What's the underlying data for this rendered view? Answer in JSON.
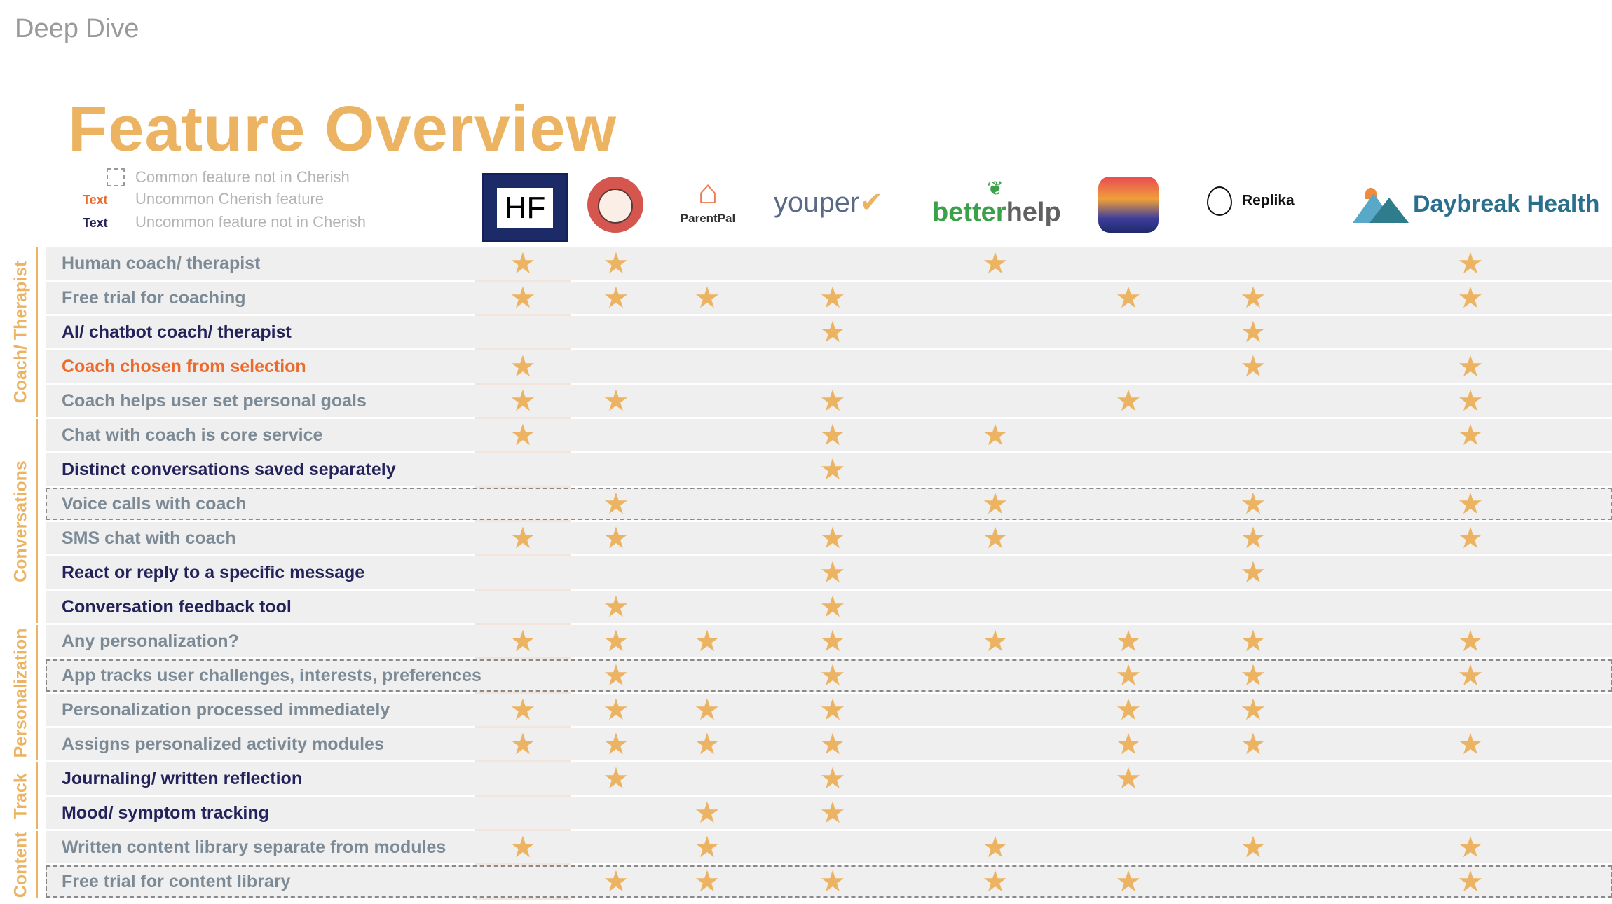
{
  "deck_title": "Deep Dive",
  "title": "Feature Overview",
  "legend": [
    {
      "swatch": "",
      "text": "Common feature not in Cherish",
      "kind": "dashed"
    },
    {
      "swatch": "Text",
      "text": "Uncommon Cherish feature",
      "kind": "orange",
      "color": "#ec6a2c"
    },
    {
      "swatch": "Text",
      "text": "Uncommon feature not in Cherish",
      "kind": "navy",
      "color": "#24225a"
    }
  ],
  "logos": {
    "hf": "HF",
    "face": "",
    "parentpal": "ParentPal",
    "youper": "youper",
    "betterhelp_a": "better",
    "betterhelp_b": "help",
    "app": "",
    "replika": "Replika",
    "daybreak": "Daybreak Health"
  },
  "categories": [
    {
      "name": "Coach/ Therapist",
      "start": 0,
      "end": 4
    },
    {
      "name": "Conversations",
      "start": 5,
      "end": 10
    },
    {
      "name": "Personalization",
      "start": 11,
      "end": 14
    },
    {
      "name": "Track",
      "start": 15,
      "end": 16
    },
    {
      "name": "Content",
      "start": 17,
      "end": 18
    }
  ],
  "columns": [
    "HF",
    "Face",
    "ParentPal",
    "youper",
    "betterhelp",
    "App",
    "Replika",
    "Daybreak Health"
  ],
  "star_glyph": "★",
  "rows": [
    {
      "label": "Human coach/ therapist",
      "style": "gray",
      "dashed": false,
      "stars": [
        0,
        1,
        4,
        7
      ]
    },
    {
      "label": "Free trial for coaching",
      "style": "gray",
      "dashed": false,
      "stars": [
        0,
        1,
        2,
        3,
        5,
        6,
        7
      ]
    },
    {
      "label": "AI/ chatbot coach/ therapist",
      "style": "navy",
      "dashed": false,
      "stars": [
        3,
        6
      ]
    },
    {
      "label": "Coach chosen from selection",
      "style": "orange",
      "dashed": false,
      "stars": [
        0,
        6,
        7
      ]
    },
    {
      "label": "Coach helps user set personal goals",
      "style": "gray",
      "dashed": false,
      "stars": [
        0,
        1,
        3,
        5,
        7
      ]
    },
    {
      "label": "Chat with coach is core service",
      "style": "gray",
      "dashed": false,
      "stars": [
        0,
        3,
        4,
        7
      ]
    },
    {
      "label": "Distinct conversations saved separately",
      "style": "navy",
      "dashed": false,
      "stars": [
        3
      ]
    },
    {
      "label": "Voice calls with coach",
      "style": "gray",
      "dashed": true,
      "stars": [
        1,
        4,
        6,
        7
      ]
    },
    {
      "label": "SMS chat with coach",
      "style": "gray",
      "dashed": false,
      "stars": [
        0,
        1,
        3,
        4,
        6,
        7
      ]
    },
    {
      "label": "React or reply to a specific message",
      "style": "navy",
      "dashed": false,
      "stars": [
        3,
        6
      ]
    },
    {
      "label": "Conversation feedback tool",
      "style": "navy",
      "dashed": false,
      "stars": [
        1,
        3
      ]
    },
    {
      "label": "Any personalization?",
      "style": "gray",
      "dashed": false,
      "stars": [
        0,
        1,
        2,
        3,
        4,
        5,
        6,
        7
      ]
    },
    {
      "label": "App tracks user challenges, interests, preferences",
      "style": "gray",
      "dashed": true,
      "stars": [
        1,
        3,
        5,
        6,
        7
      ]
    },
    {
      "label": "Personalization processed immediately",
      "style": "gray",
      "dashed": false,
      "stars": [
        0,
        1,
        2,
        3,
        5,
        6
      ]
    },
    {
      "label": "Assigns personalized activity modules",
      "style": "gray",
      "dashed": false,
      "stars": [
        0,
        1,
        2,
        3,
        5,
        6,
        7
      ]
    },
    {
      "label": "Journaling/ written reflection",
      "style": "navy",
      "dashed": false,
      "stars": [
        1,
        3,
        5
      ]
    },
    {
      "label": "Mood/ symptom tracking",
      "style": "navy",
      "dashed": false,
      "stars": [
        2,
        3
      ]
    },
    {
      "label": "Written content library separate from modules",
      "style": "gray",
      "dashed": false,
      "stars": [
        0,
        2,
        4,
        6,
        7
      ]
    },
    {
      "label": "Free trial for content library",
      "style": "gray",
      "dashed": true,
      "stars": [
        1,
        2,
        3,
        4,
        5,
        7
      ]
    }
  ]
}
